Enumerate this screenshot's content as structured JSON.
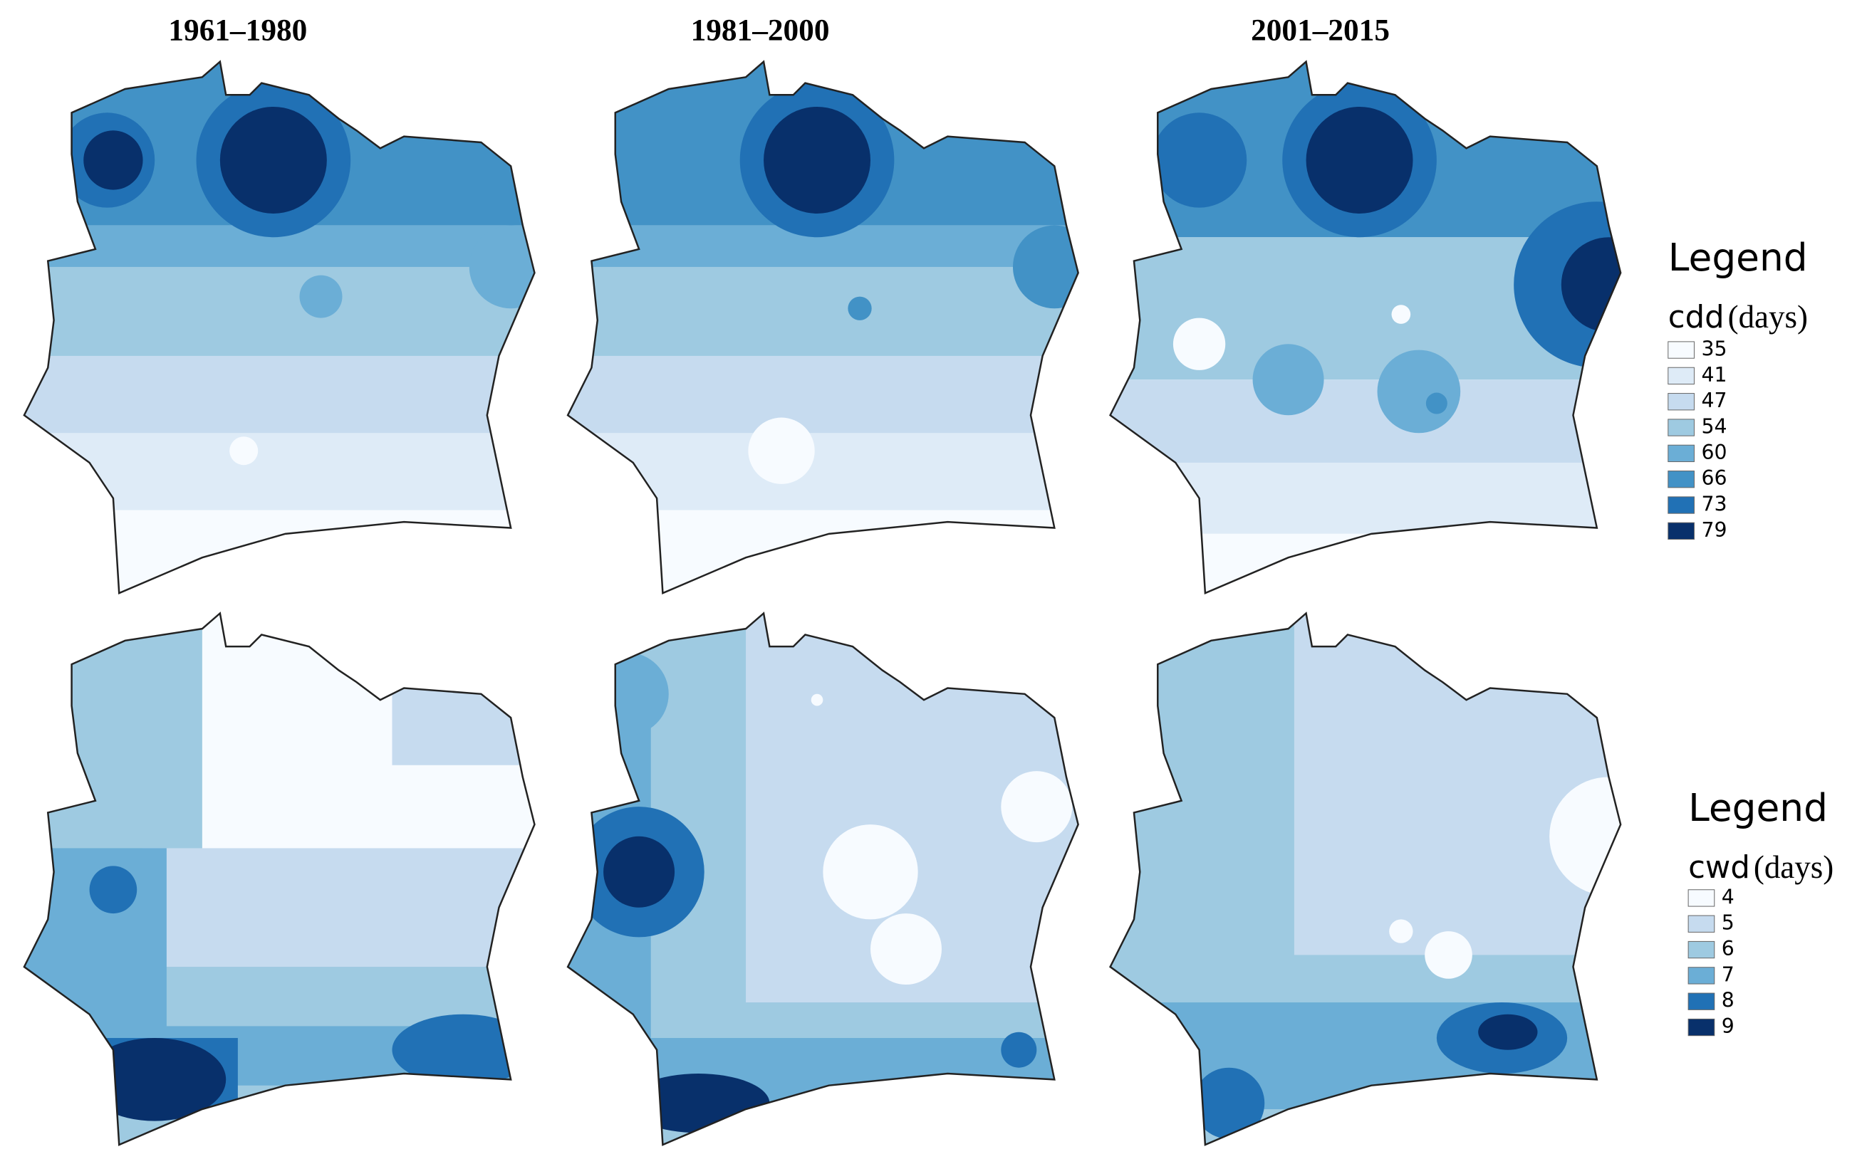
{
  "panels": {
    "titles": [
      "1961–1980",
      "1981–2000",
      "2001–2015"
    ]
  },
  "legends": [
    {
      "title": "Legend",
      "variable": "cdd",
      "unit": "(days)",
      "items": [
        {
          "value": 35,
          "color": "#f7fbff"
        },
        {
          "value": 41,
          "color": "#deebf7"
        },
        {
          "value": 47,
          "color": "#c6dbef"
        },
        {
          "value": 54,
          "color": "#9ecae1"
        },
        {
          "value": 60,
          "color": "#6baed6"
        },
        {
          "value": 66,
          "color": "#4292c6"
        },
        {
          "value": 73,
          "color": "#2171b5"
        },
        {
          "value": 79,
          "color": "#08306b"
        }
      ]
    },
    {
      "title": "Legend",
      "variable": "cwd",
      "unit": "(days)",
      "items": [
        {
          "value": 4,
          "color": "#f7fbff"
        },
        {
          "value": 5,
          "color": "#c6dbef"
        },
        {
          "value": 6,
          "color": "#9ecae1"
        },
        {
          "value": 7,
          "color": "#6baed6"
        },
        {
          "value": 8,
          "color": "#2171b5"
        },
        {
          "value": 9,
          "color": "#08306b"
        }
      ]
    }
  ]
}
